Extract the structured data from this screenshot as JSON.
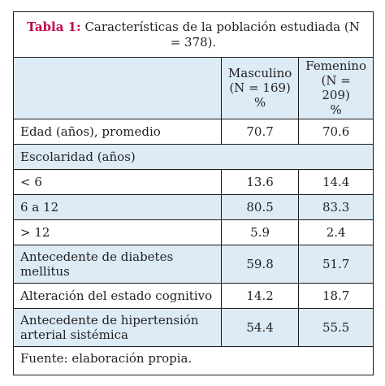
{
  "table": {
    "label": "Tabla 1:",
    "caption": " Características de la población estudiada (N = 378).",
    "columns": [
      {
        "name": "Masculino",
        "n": "(N = 169)",
        "unit": "%"
      },
      {
        "name": "Femenino",
        "n": "(N = 209)",
        "unit": "%"
      }
    ],
    "rows": [
      {
        "label": "Edad (años), promedio",
        "m": "70.7",
        "f": "70.6"
      },
      {
        "label": "Escolaridad (años)"
      },
      {
        "label": "< 6",
        "m": "13.6",
        "f": "14.4"
      },
      {
        "label": "6 a 12",
        "m": "80.5",
        "f": "83.3"
      },
      {
        "label": "> 12",
        "m": "5.9",
        "f": "2.4"
      },
      {
        "label": "Antecedente de diabetes mellitus",
        "m": "59.8",
        "f": "51.7"
      },
      {
        "label": "Alteración del estado cognitivo",
        "m": "14.2",
        "f": "18.7"
      },
      {
        "label": "Antecedente de hipertensión arterial sistémica",
        "m": "54.4",
        "f": "55.5"
      }
    ],
    "footer": "Fuente: elaboración propia.",
    "colors": {
      "header_fill": "#dcebf6",
      "label_accent": "#c0004a"
    }
  }
}
